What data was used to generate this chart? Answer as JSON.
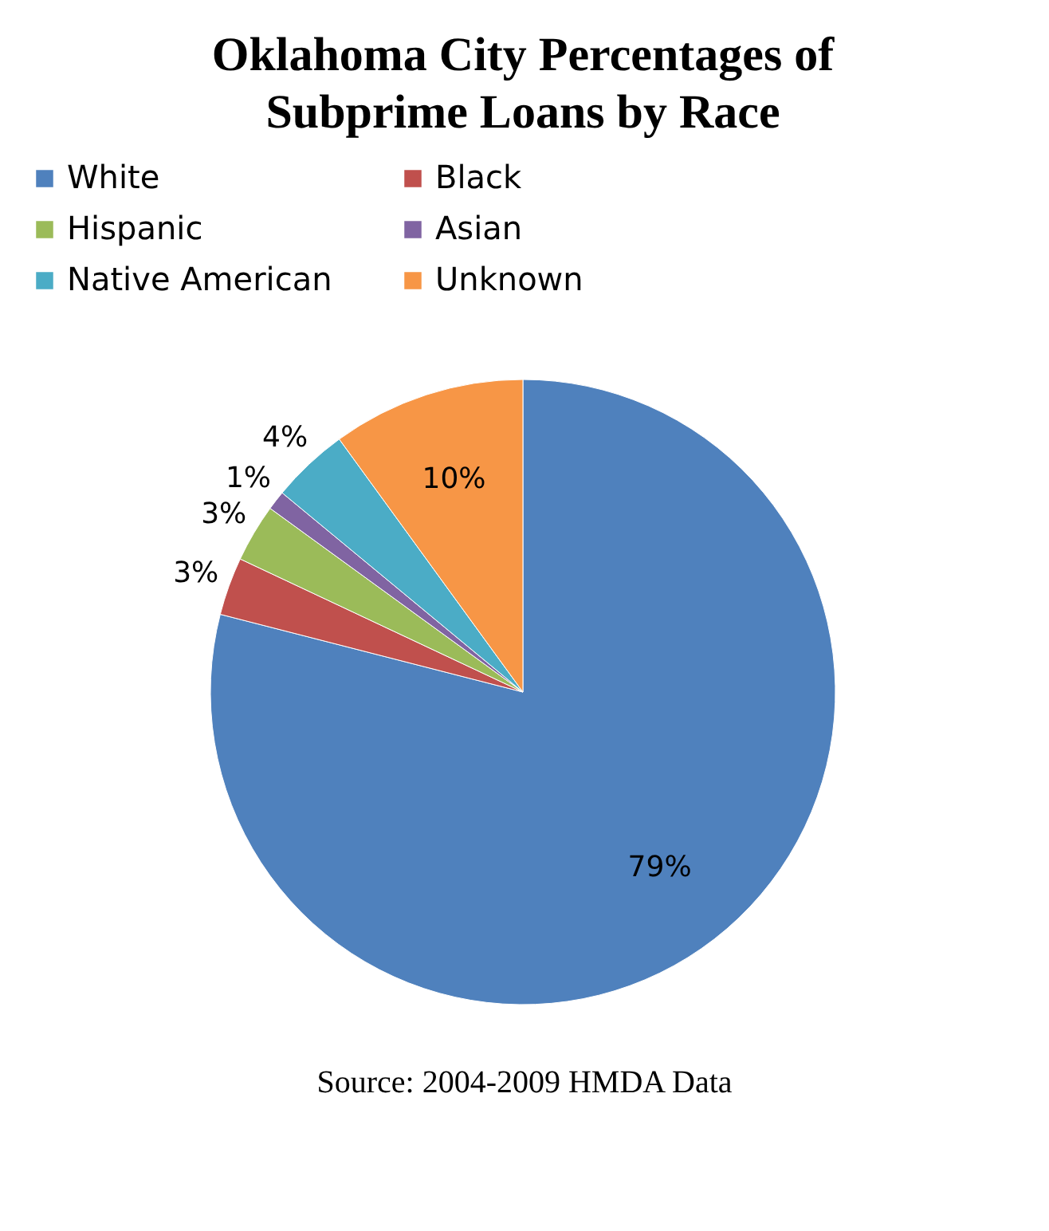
{
  "chart_data": {
    "type": "pie",
    "title": "Oklahoma City Percentages of Subprime Loans by Race",
    "categories": [
      "White",
      "Black",
      "Hispanic",
      "Asian",
      "Native American",
      "Unknown"
    ],
    "values": [
      79,
      3,
      3,
      1,
      4,
      10
    ],
    "colors": [
      "#4f81bd",
      "#c0504d",
      "#9bbb59",
      "#8064a2",
      "#4bacc6",
      "#f79646"
    ],
    "value_labels": [
      "79%",
      "3%",
      "3%",
      "1%",
      "4%",
      "10%"
    ],
    "legend": "top",
    "annotations": [
      "Source: 2004-2009 HMDA Data"
    ]
  }
}
